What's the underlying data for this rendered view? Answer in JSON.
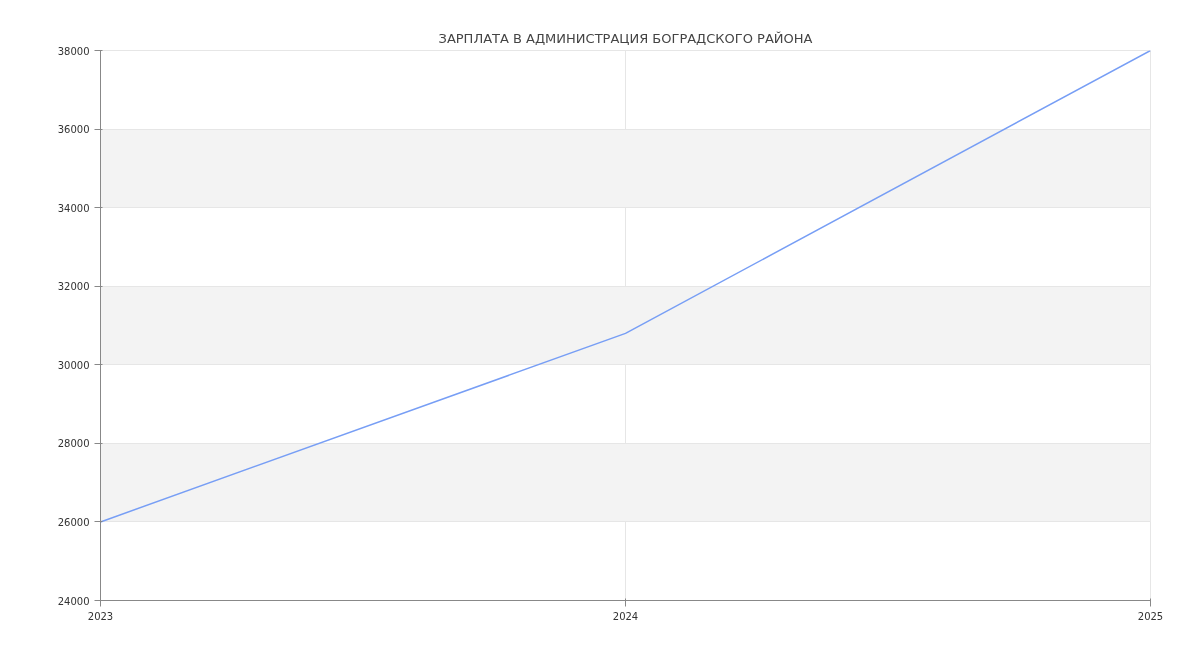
{
  "chart_data": {
    "type": "line",
    "title": "ЗАРПЛАТА В АДМИНИСТРАЦИЯ БОГРАДСКОГО РАЙОНА",
    "x": [
      2023,
      2024,
      2025
    ],
    "series": [
      {
        "color": "#779ef5",
        "values": [
          26000,
          30800,
          38000
        ]
      }
    ],
    "xlim": [
      2023,
      2025
    ],
    "xticks": [
      2023,
      2024,
      2025
    ],
    "ylim": [
      24000,
      38000
    ],
    "yticks": [
      24000,
      26000,
      28000,
      30000,
      32000,
      34000,
      36000,
      38000
    ],
    "grid": true,
    "marker": "none",
    "line_style": "solid"
  }
}
